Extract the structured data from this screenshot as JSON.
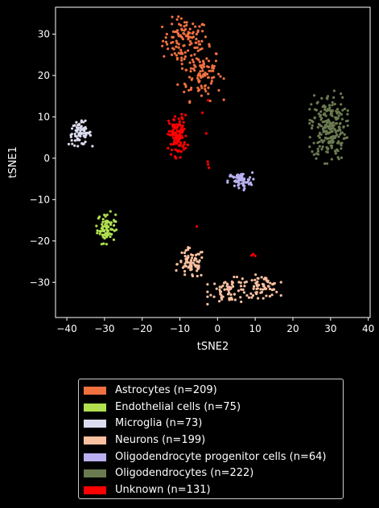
{
  "chart_data": {
    "type": "scatter",
    "title": "",
    "xlabel": "tSNE2",
    "ylabel": "tSNE1",
    "xlim": [
      -43,
      40.5
    ],
    "ylim": [
      -38.5,
      36.5
    ],
    "xticks": [
      -40,
      -30,
      -20,
      -10,
      0,
      10,
      20,
      30,
      40
    ],
    "yticks": [
      -30,
      -20,
      -10,
      0,
      10,
      20,
      30
    ],
    "xtick_labels": [
      "−40",
      "−30",
      "−20",
      "−10",
      "0",
      "10",
      "20",
      "30",
      "40"
    ],
    "ytick_labels": [
      "−30",
      "−20",
      "−10",
      "0",
      "10",
      "20",
      "30"
    ],
    "grid": false,
    "legend_position": "below",
    "series": [
      {
        "name": "Astrocytes (n=209)",
        "color": "#f07040",
        "count": 209,
        "clusters": [
          {
            "cx": -8.5,
            "cy": 28.5,
            "sx": 3.0,
            "sy": 2.6,
            "n": 110
          },
          {
            "cx": -4.5,
            "cy": 20.5,
            "sx": 2.8,
            "sy": 3.2,
            "n": 99
          }
        ]
      },
      {
        "name": "Endothelial cells (n=75)",
        "color": "#b0e050",
        "count": 75,
        "clusters": [
          {
            "cx": -29.5,
            "cy": -16.8,
            "sx": 1.2,
            "sy": 1.8,
            "n": 75
          }
        ]
      },
      {
        "name": "Microglia (n=73)",
        "color": "#dcdcf0",
        "count": 73,
        "clusters": [
          {
            "cx": -36.5,
            "cy": 6.0,
            "sx": 1.5,
            "sy": 1.4,
            "n": 73
          }
        ]
      },
      {
        "name": "Neurons (n=199)",
        "color": "#f8c0a0",
        "count": 199,
        "clusters": [
          {
            "cx": -7.0,
            "cy": -25.5,
            "sx": 1.8,
            "sy": 1.8,
            "n": 70
          },
          {
            "cx": 3.5,
            "cy": -32.0,
            "sx": 2.8,
            "sy": 1.5,
            "n": 65
          },
          {
            "cx": 12.0,
            "cy": -31.0,
            "sx": 2.2,
            "sy": 1.3,
            "n": 64
          }
        ]
      },
      {
        "name": "Oligodendrocyte progenitor cells (n=64)",
        "color": "#b8b0f0",
        "count": 64,
        "clusters": [
          {
            "cx": 6.0,
            "cy": -5.5,
            "sx": 1.6,
            "sy": 1.0,
            "n": 64
          }
        ]
      },
      {
        "name": "Oligodendrocytes (n=222)",
        "color": "#6a7a50",
        "count": 222,
        "clusters": [
          {
            "cx": 29.5,
            "cy": 7.5,
            "sx": 2.3,
            "sy": 4.0,
            "n": 222
          }
        ]
      },
      {
        "name": "Unknown (n=131)",
        "color": "#ff0000",
        "count": 131,
        "clusters": [
          {
            "cx": -10.5,
            "cy": 5.5,
            "sx": 1.2,
            "sy": 2.4,
            "n": 120
          }
        ],
        "points": [
          [
            -2.5,
            14
          ],
          [
            -4,
            11
          ],
          [
            -3,
            6
          ],
          [
            -2.5,
            -1.5
          ],
          [
            -2.3,
            -2.3
          ],
          [
            -2.6,
            -0.8
          ],
          [
            -5.5,
            -16.5
          ],
          [
            9,
            -23.5
          ],
          [
            9.5,
            -23.2
          ],
          [
            10,
            -23.6
          ],
          [
            -11,
            0
          ]
        ]
      }
    ]
  }
}
